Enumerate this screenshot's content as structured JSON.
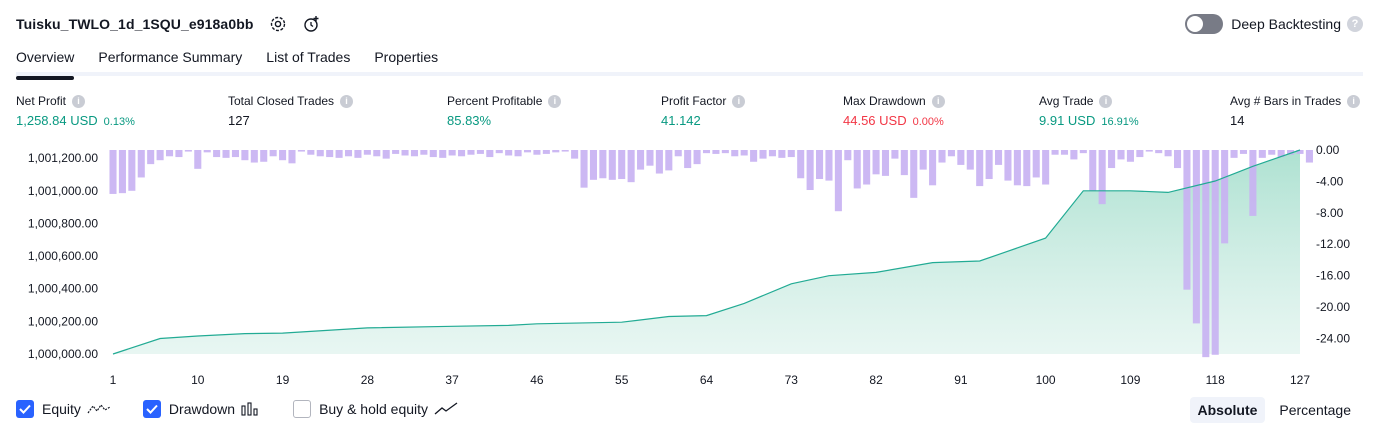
{
  "header": {
    "title": "Tuisku_TWLO_1d_1SQU_e918a0bb",
    "settings_icon": "gear-icon",
    "alert_icon": "add-alert-icon"
  },
  "deep_backtesting": {
    "label": "Deep Backtesting",
    "enabled": false,
    "help": "?"
  },
  "tabs": [
    {
      "label": "Overview",
      "active": true
    },
    {
      "label": "Performance Summary",
      "active": false
    },
    {
      "label": "List of Trades",
      "active": false
    },
    {
      "label": "Properties",
      "active": false
    }
  ],
  "metrics": {
    "net_profit": {
      "label": "Net Profit",
      "value": "1,258.84 USD",
      "pct": "0.13%"
    },
    "total_closed_trades": {
      "label": "Total Closed Trades",
      "value": "127"
    },
    "percent_profitable": {
      "label": "Percent Profitable",
      "value": "85.83%"
    },
    "profit_factor": {
      "label": "Profit Factor",
      "value": "41.142"
    },
    "max_drawdown": {
      "label": "Max Drawdown",
      "value": "44.56 USD",
      "pct": "0.00%"
    },
    "avg_trade": {
      "label": "Avg Trade",
      "value": "9.91 USD",
      "pct": "16.91%"
    },
    "avg_bars": {
      "label": "Avg # Bars in Trades",
      "value": "14"
    },
    "info_glyph": "i"
  },
  "legend": {
    "equity": {
      "label": "Equity",
      "checked": true
    },
    "drawdown": {
      "label": "Drawdown",
      "checked": true
    },
    "buy_hold": {
      "label": "Buy & hold equity",
      "checked": false
    }
  },
  "modes": {
    "absolute": "Absolute",
    "percentage": "Percentage",
    "active": "absolute"
  },
  "colors": {
    "equity_line": "#22ab94",
    "equity_fill": "#d5efe8",
    "drawdown_bar": "#c8b2f2",
    "accent": "#2962ff"
  },
  "chart_data": [
    {
      "type": "area",
      "name": "Equity",
      "ylim": [
        1000000,
        1001250
      ],
      "yticks": [
        1000000,
        1000200,
        1000400,
        1000600,
        1000800,
        1001000,
        1001200
      ],
      "ytick_labels": [
        "1,000,000.00",
        "1,000,200.00",
        "1,000,400.00",
        "1,000,600.00",
        "1,000,800.00",
        "1,001,000.00",
        "1,001,200.00"
      ],
      "xlim": [
        1,
        127
      ],
      "xticks": [
        1,
        10,
        19,
        28,
        37,
        46,
        55,
        64,
        73,
        82,
        91,
        100,
        109,
        118,
        127
      ],
      "points": [
        [
          1,
          1000000
        ],
        [
          6,
          1000095
        ],
        [
          10,
          1000110
        ],
        [
          15,
          1000125
        ],
        [
          19,
          1000128
        ],
        [
          28,
          1000160
        ],
        [
          37,
          1000170
        ],
        [
          43,
          1000175
        ],
        [
          46,
          1000185
        ],
        [
          55,
          1000195
        ],
        [
          60,
          1000230
        ],
        [
          64,
          1000235
        ],
        [
          68,
          1000310
        ],
        [
          73,
          1000430
        ],
        [
          77,
          1000480
        ],
        [
          82,
          1000500
        ],
        [
          88,
          1000560
        ],
        [
          93,
          1000570
        ],
        [
          96,
          1000630
        ],
        [
          100,
          1000710
        ],
        [
          104,
          1001000
        ],
        [
          109,
          1001000
        ],
        [
          113,
          1000990
        ],
        [
          118,
          1001060
        ],
        [
          122,
          1001150
        ],
        [
          127,
          1001250
        ]
      ]
    },
    {
      "type": "bar",
      "name": "Drawdown",
      "ylim": [
        -26,
        0
      ],
      "yticks": [
        0,
        -4,
        -8,
        -12,
        -16,
        -20,
        -24
      ],
      "ytick_labels": [
        "0.00",
        "-4.00",
        "-8.00",
        "-12.00",
        "-16.00",
        "-20.00",
        "-24.00"
      ],
      "x_start": 1,
      "values": [
        -5.6,
        -5.5,
        -5.2,
        -3.5,
        -1.8,
        -1.3,
        -0.8,
        -0.9,
        -0.2,
        -2.4,
        -0.3,
        -0.9,
        -1.0,
        -0.9,
        -1.3,
        -1.6,
        -1.5,
        -0.8,
        -1.3,
        -1.7,
        -0.2,
        -0.6,
        -0.8,
        -0.9,
        -1.0,
        -0.8,
        -1.0,
        -0.6,
        -0.8,
        -1.1,
        -0.5,
        -0.7,
        -0.8,
        -0.6,
        -0.9,
        -1.0,
        -0.7,
        -0.8,
        -0.6,
        -0.5,
        -0.9,
        -0.4,
        -0.7,
        -0.8,
        -0.3,
        -0.6,
        -0.5,
        -0.3,
        -0.2,
        -1.1,
        -4.8,
        -3.8,
        -3.6,
        -3.8,
        -3.7,
        -4.1,
        -2.5,
        -2.0,
        -3.0,
        -2.6,
        -0.8,
        -2.3,
        -1.8,
        -0.4,
        -0.5,
        -0.4,
        -0.8,
        -0.7,
        -1.5,
        -1.1,
        -0.8,
        -1.0,
        -0.9,
        -3.6,
        -5.1,
        -3.7,
        -3.9,
        -7.8,
        -1.3,
        -4.9,
        -4.4,
        -3.1,
        -3.3,
        -1.1,
        -3.2,
        -6.1,
        -2.5,
        -4.5,
        -1.6,
        -0.8,
        -1.9,
        -2.5,
        -4.6,
        -3.7,
        -1.9,
        -3.9,
        -4.5,
        -4.6,
        -3.5,
        -4.4,
        -0.6,
        -0.6,
        -1.2,
        -0.4,
        -5.2,
        -6.9,
        -2.3,
        -1.2,
        -1.5,
        -0.9,
        -0.2,
        -0.4,
        -0.8,
        -2.3,
        -17.8,
        -22.1,
        -26.4,
        -26.1,
        -11.9,
        -1.0,
        -0.5,
        -8.4,
        -1.0,
        -0.6,
        -0.9,
        -0.6,
        -0.5,
        -1.6
      ]
    }
  ]
}
